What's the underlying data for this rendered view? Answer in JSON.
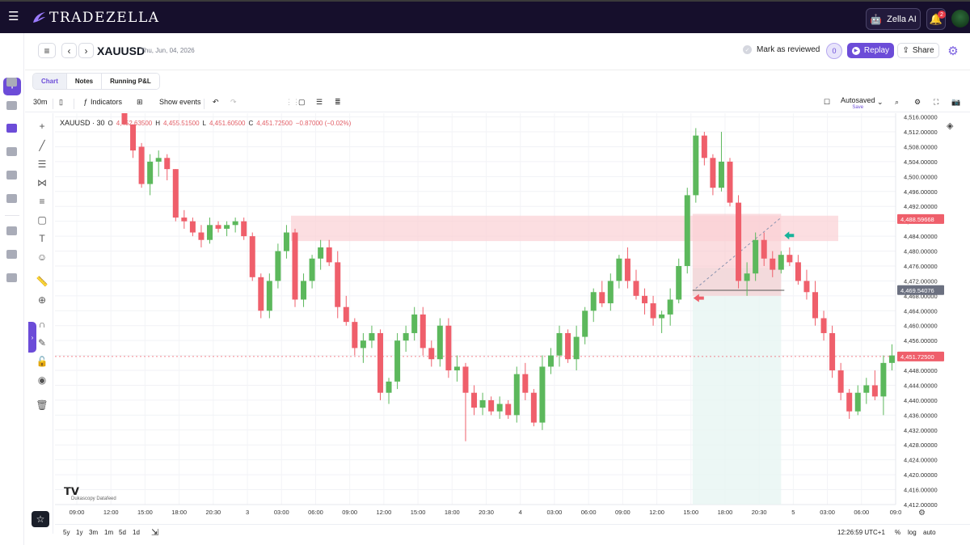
{
  "app": {
    "name": "TRADEZELLA",
    "menu_icon": "hamburger-icon"
  },
  "topbar": {
    "ai_label": "Zella AI",
    "notifications": "2"
  },
  "header": {
    "symbol": "XAUUSD",
    "date": "Thu, Jun, 04, 2026",
    "mark_reviewed": "Mark as reviewed",
    "ai_badge": "0",
    "replay": "Replay",
    "share": "Share"
  },
  "tabs": [
    {
      "label": "Chart"
    },
    {
      "label": "Notes"
    },
    {
      "label": "Running P&L"
    }
  ],
  "toolbar": {
    "interval": "30m",
    "indicators": "Indicators",
    "show_events": "Show events",
    "autosaved": "Autosaved",
    "save": "Save"
  },
  "legend": {
    "symbol": "XAUUSD · 30",
    "open_label": "O",
    "open": "4,452.63500",
    "high_label": "H",
    "high": "4,455.51500",
    "low_label": "L",
    "low": "4,451.60500",
    "close_label": "C",
    "close": "4,451.72500",
    "change": "−0.87000 (−0.02%)"
  },
  "chart_data": {
    "type": "candlestick",
    "ylim": [
      4412,
      4517
    ],
    "y_ticks": [
      "4,516.00000",
      "4,512.00000",
      "4,508.00000",
      "4,504.00000",
      "4,500.00000",
      "4,496.00000",
      "4,492.00000",
      "4,488.00000",
      "4,484.00000",
      "4,480.00000",
      "4,476.00000",
      "4,472.00000",
      "4,468.00000",
      "4,464.00000",
      "4,460.00000",
      "4,456.00000",
      "4,452.00000",
      "4,448.00000",
      "4,444.00000",
      "4,440.00000",
      "4,436.00000",
      "4,432.00000",
      "4,428.00000",
      "4,424.00000",
      "4,420.00000",
      "4,416.00000",
      "4,412.00000"
    ],
    "x_labels": [
      "09:00",
      "12:00",
      "15:00",
      "18:00",
      "20:30",
      "3",
      "03:00",
      "06:00",
      "09:00",
      "12:00",
      "15:00",
      "18:00",
      "20:30",
      "4",
      "03:00",
      "06:00",
      "09:00",
      "12:00",
      "15:00",
      "18:00",
      "20:30",
      "5",
      "03:00",
      "06:00",
      "09:0"
    ],
    "price_labels": {
      "upper": "4,488.59668",
      "middle": "4,469.54076",
      "last": "4,451.72500"
    },
    "candles": [
      [
        4517,
        4517,
        4514,
        4514
      ],
      [
        4514,
        4514,
        4505,
        4507
      ],
      [
        4508,
        4509,
        4497,
        4498
      ],
      [
        4498,
        4506,
        4495,
        4504
      ],
      [
        4504,
        4507,
        4500,
        4505
      ],
      [
        4505,
        4506,
        4499,
        4502
      ],
      [
        4502,
        4502,
        4488,
        4489
      ],
      [
        4489,
        4491,
        4486,
        4488
      ],
      [
        4488,
        4489,
        4484,
        4485
      ],
      [
        4485,
        4487,
        4481,
        4483
      ],
      [
        4483,
        4489,
        4482,
        4487
      ],
      [
        4487,
        4488,
        4485,
        4486
      ],
      [
        4486,
        4488,
        4484,
        4487
      ],
      [
        4487,
        4489,
        4485,
        4488
      ],
      [
        4488,
        4489,
        4483,
        4484
      ],
      [
        4484,
        4485,
        4472,
        4473
      ],
      [
        4473,
        4474,
        4462,
        4464
      ],
      [
        4464,
        4474,
        4462,
        4472
      ],
      [
        4472,
        4482,
        4470,
        4480
      ],
      [
        4480,
        4487,
        4478,
        4485
      ],
      [
        4485,
        4486,
        4465,
        4467
      ],
      [
        4467,
        4474,
        4465,
        4472
      ],
      [
        4472,
        4479,
        4470,
        4478
      ],
      [
        4478,
        4483,
        4475,
        4481
      ],
      [
        4481,
        4483,
        4476,
        4477
      ],
      [
        4477,
        4480,
        4462,
        4465
      ],
      [
        4465,
        4468,
        4460,
        4461
      ],
      [
        4461,
        4462,
        4452,
        4454
      ],
      [
        4454,
        4458,
        4450,
        4456
      ],
      [
        4456,
        4460,
        4454,
        4458
      ],
      [
        4458,
        4459,
        4440,
        4442
      ],
      [
        4442,
        4446,
        4439,
        4445
      ],
      [
        4445,
        4458,
        4443,
        4456
      ],
      [
        4456,
        4460,
        4453,
        4458
      ],
      [
        4458,
        4465,
        4456,
        4463
      ],
      [
        4463,
        4465,
        4452,
        4454
      ],
      [
        4454,
        4456,
        4449,
        4451
      ],
      [
        4451,
        4462,
        4449,
        4460
      ],
      [
        4460,
        4462,
        4446,
        4448
      ],
      [
        4448,
        4452,
        4445,
        4449
      ],
      [
        4449,
        4450,
        4429,
        4442
      ],
      [
        4442,
        4444,
        4436,
        4438
      ],
      [
        4438,
        4442,
        4436,
        4440
      ],
      [
        4440,
        4441,
        4436,
        4437
      ],
      [
        4437,
        4441,
        4435,
        4439
      ],
      [
        4439,
        4440,
        4435,
        4436
      ],
      [
        4436,
        4449,
        4434,
        4447
      ],
      [
        4447,
        4450,
        4440,
        4442
      ],
      [
        4442,
        4443,
        4433,
        4434
      ],
      [
        4434,
        4452,
        4432,
        4449
      ],
      [
        4449,
        4454,
        4447,
        4452
      ],
      [
        4452,
        4460,
        4449,
        4458
      ],
      [
        4458,
        4459,
        4450,
        4451
      ],
      [
        4451,
        4460,
        4448,
        4457
      ],
      [
        4457,
        4465,
        4455,
        4464
      ],
      [
        4464,
        4470,
        4461,
        4469
      ],
      [
        4469,
        4472,
        4465,
        4466
      ],
      [
        4466,
        4474,
        4464,
        4472
      ],
      [
        4472,
        4479,
        4470,
        4478
      ],
      [
        4478,
        4481,
        4470,
        4472
      ],
      [
        4472,
        4475,
        4467,
        4468
      ],
      [
        4468,
        4470,
        4463,
        4466
      ],
      [
        4466,
        4468,
        4460,
        4462
      ],
      [
        4462,
        4464,
        4458,
        4463
      ],
      [
        4463,
        4470,
        4460,
        4467
      ],
      [
        4467,
        4478,
        4466,
        4476
      ],
      [
        4476,
        4497,
        4474,
        4495
      ],
      [
        4495,
        4513,
        4493,
        4511
      ],
      [
        4511,
        4512,
        4503,
        4505
      ],
      [
        4505,
        4506,
        4495,
        4497
      ],
      [
        4497,
        4512,
        4496,
        4504
      ],
      [
        4504,
        4505,
        4492,
        4493
      ],
      [
        4493,
        4495,
        4470,
        4472
      ],
      [
        4472,
        4477,
        4468,
        4474
      ],
      [
        4474,
        4485,
        4472,
        4483
      ],
      [
        4483,
        4485,
        4476,
        4478
      ],
      [
        4478,
        4480,
        4473,
        4475
      ],
      [
        4475,
        4480,
        4474,
        4479
      ],
      [
        4479,
        4481,
        4476,
        4477
      ],
      [
        4477,
        4479,
        4471,
        4472
      ],
      [
        4472,
        4475,
        4467,
        4469
      ],
      [
        4469,
        4472,
        4460,
        4462
      ],
      [
        4462,
        4464,
        4456,
        4458
      ],
      [
        4458,
        4460,
        4446,
        4448
      ],
      [
        4448,
        4450,
        4440,
        4442
      ],
      [
        4442,
        4443,
        4435,
        4437
      ],
      [
        4437,
        4444,
        4436,
        4442
      ],
      [
        4442,
        4446,
        4439,
        4444
      ],
      [
        4444,
        4448,
        4440,
        4441
      ],
      [
        4441,
        4452,
        4436,
        4450
      ],
      [
        4450,
        4455,
        4448,
        4452
      ]
    ]
  },
  "drawing_tools": [
    "crosshair-icon",
    "trend-line-icon",
    "horizontal-lines-icon",
    "pitchfork-icon",
    "fib-icon",
    "rectangle-icon",
    "text-icon",
    "emoji-icon",
    "ruler-icon",
    "zoom-icon",
    "magnet-icon",
    "pencil-icon",
    "lock-icon",
    "eye-icon",
    "trash-icon"
  ],
  "footer": {
    "ranges": [
      "5y",
      "1y",
      "3m",
      "1m",
      "5d",
      "1d"
    ],
    "clock": "12:26:59 UTC+1",
    "percent": "%",
    "log": "log",
    "auto": "auto",
    "datafeed": "Dukascopy Datafeed"
  },
  "colors": {
    "up": "#5cb85c",
    "down": "#ef5f6b",
    "accent": "#6c4cd8",
    "topbar": "#160f2c"
  }
}
